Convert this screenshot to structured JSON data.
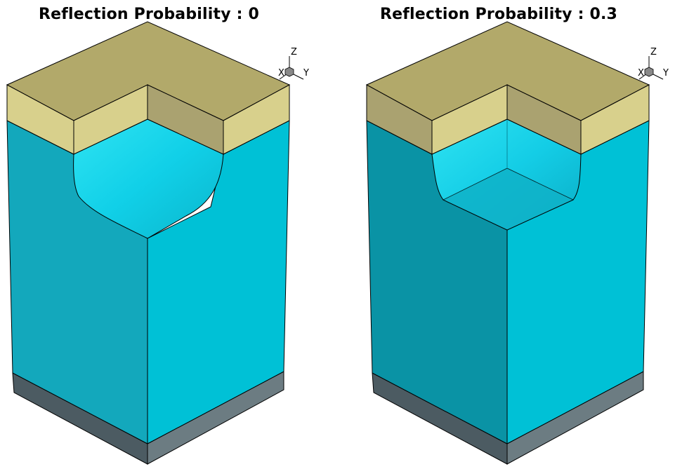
{
  "panels": [
    {
      "title": "Reflection Probability : 0",
      "axes": {
        "z": "Z",
        "x": "X",
        "y": "Y"
      }
    },
    {
      "title": "Reflection Probability : 0.3",
      "axes": {
        "z": "Z",
        "x": "X",
        "y": "Y"
      }
    }
  ],
  "colors": {
    "mask_top": "#b2a96a",
    "mask_front_left": "#d8d08c",
    "mask_front_right": "#aaa270",
    "silicon_left": "#13a8bc",
    "silicon_right": "#00c1d6",
    "trench": "#19d2e6",
    "substrate_left": "#4c5b62",
    "substrate_right": "#6c7c82"
  }
}
